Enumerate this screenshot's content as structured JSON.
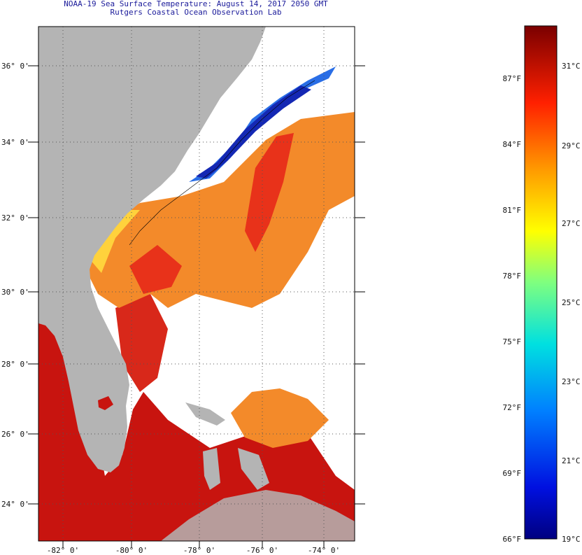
{
  "title": {
    "line1": "NOAA-19 Sea Surface Temperature:  August 14, 2017 2050 GMT",
    "line2": "Rutgers Coastal Ocean Observation Lab"
  },
  "axes": {
    "lat_labels": [
      "36° 0'",
      "34° 0'",
      "32° 0'",
      "30° 0'",
      "28° 0'",
      "26° 0'",
      "24° 0'"
    ],
    "lon_labels": [
      "-82° 0'",
      "-80° 0'",
      "-78° 0'",
      "-76° 0'",
      "-74° 0'"
    ]
  },
  "colorbar": {
    "f_labels": [
      "87°F",
      "84°F",
      "81°F",
      "78°F",
      "75°F",
      "72°F",
      "69°F",
      "66°F"
    ],
    "c_labels": [
      "31°C",
      "29°C",
      "27°C",
      "25°C",
      "23°C",
      "21°C",
      "19°C"
    ],
    "min_c": 19,
    "max_c": 32
  },
  "colors": {
    "land": "#b4b4b4",
    "warm": "#c8140f",
    "hot": "#e8321a",
    "orange": "#f38a2a",
    "yellow": "#ffd23c",
    "cool": "#2a6ee6",
    "cold": "#1428b4",
    "frame": "#000000"
  }
}
